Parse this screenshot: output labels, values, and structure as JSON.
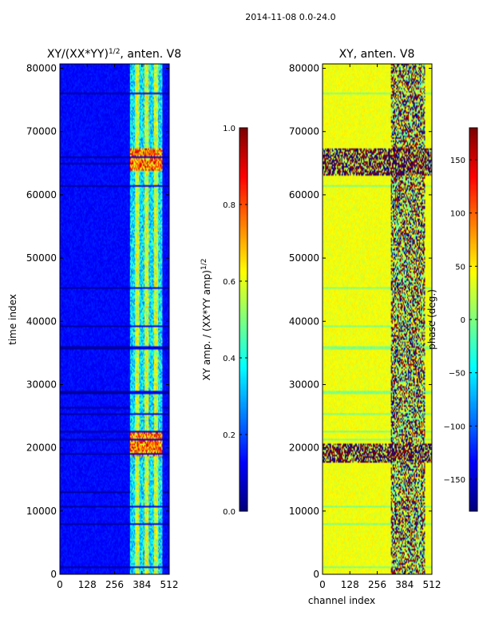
{
  "suptitle": "2014-11-08 0.0-24.0",
  "chart_data": [
    {
      "type": "heatmap",
      "title_prefix": "XY/(XX*YY)",
      "title_exponent": "1/2",
      "title_suffix": ", anten. V8",
      "xlabel": "",
      "ylabel": "time index",
      "xlim": [
        0,
        512
      ],
      "ylim": [
        0,
        80700
      ],
      "xticks": [
        "0",
        "128",
        "256",
        "384",
        "512"
      ],
      "yticks": [
        "0",
        "10000",
        "20000",
        "30000",
        "40000",
        "50000",
        "60000",
        "70000",
        "80000"
      ],
      "colormap": "jet",
      "colorbar": {
        "label_prefix": "XY amp. / (XX*YY amp)",
        "label_exponent": "1/2",
        "range": [
          0.0,
          1.0
        ],
        "ticks": [
          "0.0",
          "0.2",
          "0.4",
          "0.6",
          "0.8",
          "1.0"
        ]
      },
      "description_values": {
        "background_level": 0.1,
        "active_channel_range": [
          330,
          480
        ],
        "active_level": 0.55,
        "hot_time_bands": [
          [
            18500,
            22500
          ],
          [
            64000,
            67500
          ]
        ]
      }
    },
    {
      "type": "heatmap",
      "title": "XY, anten. V8",
      "xlabel": "channel index",
      "ylabel": "",
      "xlim": [
        0,
        512
      ],
      "ylim": [
        0,
        80700
      ],
      "xticks": [
        "0",
        "128",
        "256",
        "384",
        "512"
      ],
      "yticks": [
        "0",
        "10000",
        "20000",
        "30000",
        "40000",
        "50000",
        "60000",
        "70000",
        "80000"
      ],
      "colormap": "jet",
      "colorbar": {
        "label": "phase (deg.)",
        "range": [
          -180,
          180
        ],
        "ticks": [
          "−150",
          "−100",
          "−50",
          "0",
          "50",
          "100",
          "150"
        ]
      },
      "description_values": {
        "background_phase": 40,
        "active_channel_range": [
          320,
          480
        ],
        "disturbed_time_bands": [
          [
            17500,
            20500
          ],
          [
            63000,
            67500
          ]
        ]
      }
    }
  ]
}
